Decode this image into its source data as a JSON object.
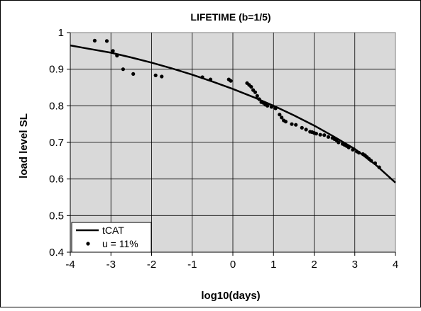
{
  "chart_data": {
    "type": "scatter",
    "title": "LIFETIME (b=1/5)",
    "xlabel": "log10(days)",
    "ylabel": "load level SL",
    "xlim": [
      -4,
      4
    ],
    "ylim": [
      0.4,
      1
    ],
    "x_ticks": [
      "-4",
      "-3",
      "-2",
      "-1",
      "0",
      "1",
      "2",
      "3",
      "4"
    ],
    "y_ticks": [
      "0.4",
      "0.5",
      "0.6",
      "0.7",
      "0.8",
      "0.9",
      "1"
    ],
    "grid": true,
    "legend": "bottom-left",
    "series": [
      {
        "name": "tCAT",
        "kind": "line",
        "x": [
          -4,
          -3.5,
          -3,
          -2.5,
          -2,
          -1.5,
          -1,
          -0.5,
          0,
          0.5,
          1,
          1.5,
          2,
          2.5,
          3,
          3.5,
          4
        ],
        "y": [
          0.965,
          0.955,
          0.945,
          0.932,
          0.918,
          0.902,
          0.885,
          0.866,
          0.846,
          0.824,
          0.8,
          0.774,
          0.746,
          0.715,
          0.682,
          0.64,
          0.59
        ]
      },
      {
        "name": "u = 11%",
        "kind": "scatter",
        "x": [
          -3.4,
          -3.1,
          -2.95,
          -2.85,
          -2.7,
          -2.45,
          -1.9,
          -1.75,
          -0.75,
          -0.55,
          -0.1,
          -0.05,
          0.35,
          0.4,
          0.45,
          0.5,
          0.55,
          0.6,
          0.65,
          0.7,
          0.75,
          0.8,
          0.85,
          0.95,
          1.05,
          1.15,
          1.2,
          1.25,
          1.3,
          1.45,
          1.55,
          1.7,
          1.8,
          1.9,
          1.95,
          2.0,
          2.05,
          2.15,
          2.25,
          2.35,
          2.45,
          2.5,
          2.55,
          2.6,
          2.7,
          2.75,
          2.8,
          2.85,
          2.95,
          3.05,
          3.1,
          3.2,
          3.25,
          3.3,
          3.35,
          3.4,
          3.5,
          3.6
        ],
        "y": [
          0.978,
          0.977,
          0.95,
          0.937,
          0.9,
          0.887,
          0.883,
          0.88,
          0.878,
          0.872,
          0.872,
          0.868,
          0.862,
          0.857,
          0.852,
          0.843,
          0.837,
          0.827,
          0.818,
          0.81,
          0.808,
          0.803,
          0.8,
          0.797,
          0.793,
          0.776,
          0.768,
          0.76,
          0.757,
          0.75,
          0.748,
          0.74,
          0.735,
          0.729,
          0.728,
          0.726,
          0.724,
          0.721,
          0.72,
          0.715,
          0.712,
          0.709,
          0.706,
          0.7,
          0.696,
          0.693,
          0.69,
          0.686,
          0.68,
          0.675,
          0.672,
          0.668,
          0.665,
          0.66,
          0.655,
          0.65,
          0.643,
          0.632
        ]
      }
    ]
  }
}
